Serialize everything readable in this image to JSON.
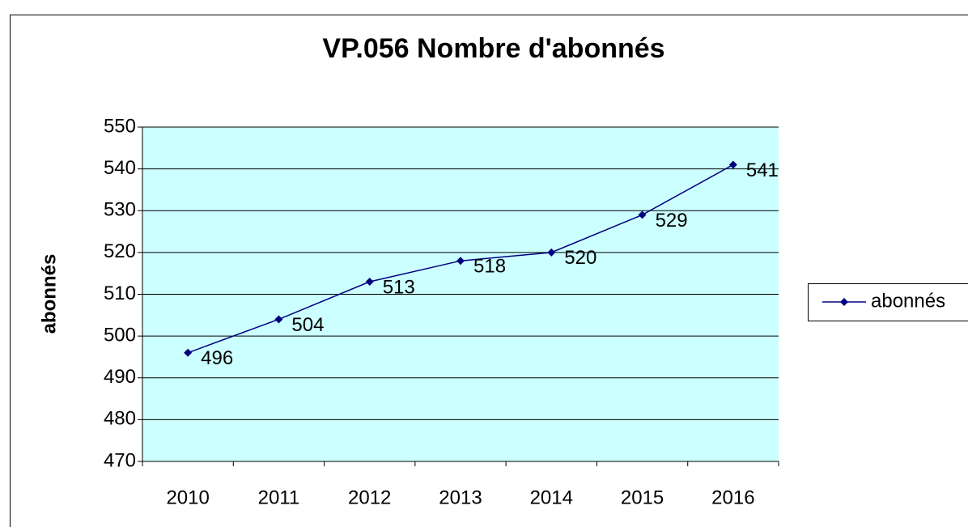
{
  "chart_data": {
    "type": "line",
    "title": "VP.056 Nombre d'abonnés",
    "y_label": "abonnés",
    "categories": [
      "2010",
      "2011",
      "2012",
      "2013",
      "2014",
      "2015",
      "2016"
    ],
    "series": [
      {
        "name": "abonnés",
        "color": "#000080",
        "values": [
          496,
          504,
          513,
          518,
          520,
          529,
          541
        ]
      }
    ],
    "ylim": [
      470,
      550
    ],
    "yticks": [
      470,
      480,
      490,
      500,
      510,
      520,
      530,
      540,
      550
    ],
    "grid": true,
    "legend": "right",
    "plot_background": "#ccffff",
    "data_labels": true
  }
}
